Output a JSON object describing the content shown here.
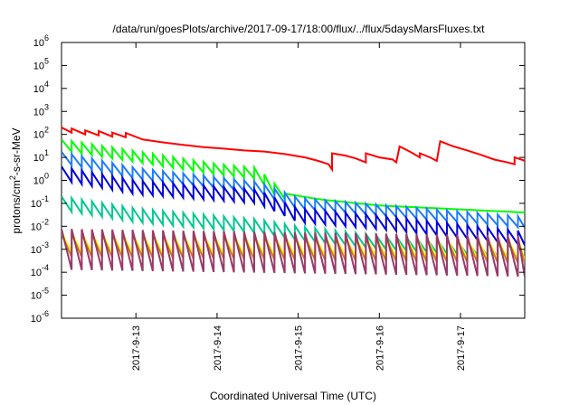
{
  "chart_data": {
    "type": "line",
    "title": "/data/run/goesPlots/archive/2017-09-17/18:00/flux/../flux/5daysMarsFluxes.txt",
    "xlabel": "Coordinated Universal Time (UTC)",
    "ylabel_parts": {
      "main": "protons/cm",
      "sup": "2",
      "rest": "-s-sr-MeV"
    },
    "y_scale": "log",
    "ylim": [
      1e-06,
      1000000.0
    ],
    "xlim": [
      "2017-09-12T02:00",
      "2017-09-17T19:00"
    ],
    "y_ticks": [
      {
        "value": 1e-06,
        "base": "10",
        "exp": "-6"
      },
      {
        "value": 1e-05,
        "base": "10",
        "exp": "-5"
      },
      {
        "value": 0.0001,
        "base": "10",
        "exp": "-4"
      },
      {
        "value": 0.001,
        "base": "10",
        "exp": "-3"
      },
      {
        "value": 0.01,
        "base": "10",
        "exp": "-2"
      },
      {
        "value": 0.1,
        "base": "10",
        "exp": "-1"
      },
      {
        "value": 1,
        "base": "10",
        "exp": "0"
      },
      {
        "value": 10.0,
        "base": "10",
        "exp": "1"
      },
      {
        "value": 100.0,
        "base": "10",
        "exp": "2"
      },
      {
        "value": 1000.0,
        "base": "10",
        "exp": "3"
      },
      {
        "value": 10000.0,
        "base": "10",
        "exp": "4"
      },
      {
        "value": 100000.0,
        "base": "10",
        "exp": "5"
      },
      {
        "value": 1000000.0,
        "base": "10",
        "exp": "6"
      }
    ],
    "x_ticks": [
      {
        "value": "2017-09-13T00:00",
        "label": "2017-9-13"
      },
      {
        "value": "2017-09-14T00:00",
        "label": "2017-9-14"
      },
      {
        "value": "2017-09-15T00:00",
        "label": "2017-9-15"
      },
      {
        "value": "2017-09-16T00:00",
        "label": "2017-9-16"
      },
      {
        "value": "2017-09-17T00:00",
        "label": "2017-9-17"
      }
    ],
    "grid": false,
    "legend": "none",
    "series": [
      {
        "color": "#ff0000",
        "values": [
          [
            "2017-09-12T02:00",
            200
          ],
          [
            "2017-09-12T05:00",
            120
          ],
          [
            "2017-09-12T05:00",
            180
          ],
          [
            "2017-09-12T09:00",
            100
          ],
          [
            "2017-09-12T09:00",
            150
          ],
          [
            "2017-09-12T13:00",
            90
          ],
          [
            "2017-09-12T13:00",
            140
          ],
          [
            "2017-09-12T17:00",
            80
          ],
          [
            "2017-09-12T17:00",
            120
          ],
          [
            "2017-09-12T21:00",
            75
          ],
          [
            "2017-09-12T21:00",
            115
          ],
          [
            "2017-09-13T02:00",
            60
          ],
          [
            "2017-09-13T08:00",
            45
          ],
          [
            "2017-09-13T14:00",
            35
          ],
          [
            "2017-09-13T20:00",
            28
          ],
          [
            "2017-09-14T02:00",
            24
          ],
          [
            "2017-09-14T08:00",
            20
          ],
          [
            "2017-09-14T14:00",
            18
          ],
          [
            "2017-09-14T20:00",
            14
          ],
          [
            "2017-09-15T02:00",
            10
          ],
          [
            "2017-09-15T06:00",
            7
          ],
          [
            "2017-09-15T09:00",
            5
          ],
          [
            "2017-09-15T10:00",
            3
          ],
          [
            "2017-09-15T10:00",
            15
          ],
          [
            "2017-09-15T14:00",
            12
          ],
          [
            "2017-09-15T17:00",
            9
          ],
          [
            "2017-09-15T20:00",
            6
          ],
          [
            "2017-09-15T20:00",
            15
          ],
          [
            "2017-09-16T00:00",
            10
          ],
          [
            "2017-09-16T04:00",
            8
          ],
          [
            "2017-09-16T05:00",
            6
          ],
          [
            "2017-09-16T06:00",
            30
          ],
          [
            "2017-09-16T09:00",
            18
          ],
          [
            "2017-09-16T12:00",
            10
          ],
          [
            "2017-09-16T12:00",
            15
          ],
          [
            "2017-09-16T15:00",
            10
          ],
          [
            "2017-09-16T17:00",
            7
          ],
          [
            "2017-09-16T18:00",
            50
          ],
          [
            "2017-09-16T22:00",
            30
          ],
          [
            "2017-09-17T02:00",
            20
          ],
          [
            "2017-09-17T06:00",
            13
          ],
          [
            "2017-09-17T10:00",
            8
          ],
          [
            "2017-09-17T14:00",
            6
          ],
          [
            "2017-09-17T16:00",
            5
          ],
          [
            "2017-09-17T16:00",
            10
          ],
          [
            "2017-09-17T18:00",
            8
          ],
          [
            "2017-09-17T19:00",
            7
          ]
        ]
      },
      {
        "color": "#00ff00",
        "start": [
          "2017-09-12T02:00",
          35
        ],
        "knots": [
          [
            "2017-09-12T02:00",
            35
          ],
          [
            "2017-09-14T00:00",
            3
          ],
          [
            "2017-09-14T12:00",
            2
          ],
          [
            "2017-09-14T18:00",
            0.3
          ],
          [
            "2017-09-15T06:00",
            0.15
          ],
          [
            "2017-09-16T00:00",
            0.08
          ],
          [
            "2017-09-17T19:00",
            0.04
          ]
        ],
        "sawtooth_until": "2017-09-14T18:00",
        "period_hours": 3,
        "amplitude": 3
      },
      {
        "color": "#1e7bff",
        "knots": [
          [
            "2017-09-12T02:00",
            10
          ],
          [
            "2017-09-13T00:00",
            2
          ],
          [
            "2017-09-14T12:00",
            0.5
          ],
          [
            "2017-09-15T00:00",
            0.1
          ],
          [
            "2017-09-16T00:00",
            0.05
          ],
          [
            "2017-09-17T19:00",
            0.015
          ]
        ],
        "period_hours": 3,
        "amplitude": 3
      },
      {
        "color": "#0000dd",
        "knots": [
          [
            "2017-09-12T02:00",
            2
          ],
          [
            "2017-09-13T00:00",
            0.5
          ],
          [
            "2017-09-14T12:00",
            0.2
          ],
          [
            "2017-09-15T00:00",
            0.03
          ],
          [
            "2017-09-16T00:00",
            0.015
          ],
          [
            "2017-09-17T19:00",
            0.003
          ]
        ],
        "period_hours": 3,
        "amplitude": 4
      },
      {
        "color": "#00c890",
        "knots": [
          [
            "2017-09-12T02:00",
            0.1
          ],
          [
            "2017-09-13T00:00",
            0.03
          ],
          [
            "2017-09-14T12:00",
            0.01
          ],
          [
            "2017-09-15T00:00",
            0.005
          ],
          [
            "2017-09-16T00:00",
            0.002
          ],
          [
            "2017-09-17T19:00",
            0.0008
          ]
        ],
        "period_hours": 3,
        "amplitude": 4
      },
      {
        "color": "#ffff00",
        "knots": [
          [
            "2017-09-12T02:00",
            0.002
          ],
          [
            "2017-09-17T19:00",
            0.001
          ]
        ],
        "period_hours": 3,
        "amplitude": 8
      },
      {
        "color": "#c67c2a",
        "knots": [
          [
            "2017-09-12T02:00",
            0.0015
          ],
          [
            "2017-09-17T19:00",
            0.0008
          ]
        ],
        "period_hours": 3,
        "amplitude": 10
      },
      {
        "color": "#9a3a6a",
        "knots": [
          [
            "2017-09-12T02:00",
            0.001
          ],
          [
            "2017-09-17T19:00",
            0.0005
          ]
        ],
        "period_hours": 3,
        "amplitude": 60
      }
    ]
  }
}
